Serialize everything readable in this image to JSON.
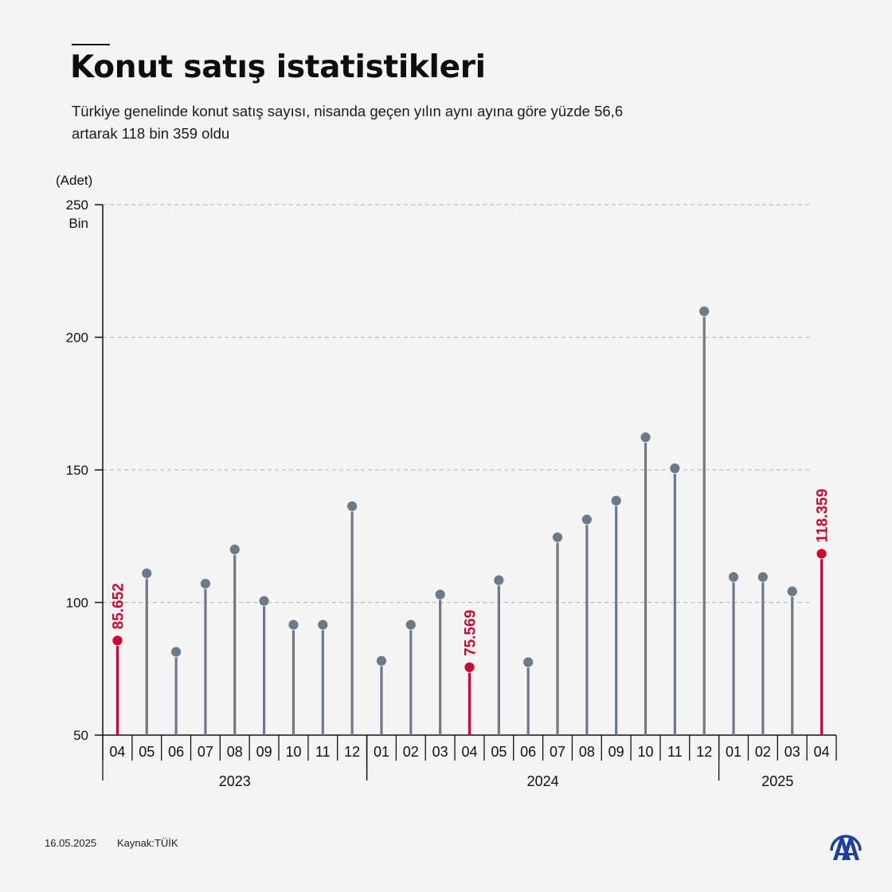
{
  "header": {
    "title": "Konut satış istatistikleri",
    "subtitle": "Türkiye genelinde konut satış sayısı, nisanda geçen yılın aynı ayına göre yüzde 56,6 artarak 118 bin 359 oldu"
  },
  "footer": {
    "date": "16.05.2025",
    "source": "Kaynak:TÜİK",
    "logo_icon": "aa-logo-icon"
  },
  "colors": {
    "background": "#f4f4f4",
    "stem": "#6b7a8b",
    "highlight": "#cc0a2f",
    "axis": "#111111",
    "grid": "#b5b5b5"
  },
  "chart_data": {
    "type": "lollipop",
    "title": "Konut satış istatistikleri",
    "ylabel": "(Adet)",
    "yunit_label": "Bin",
    "ylim": [
      50,
      250
    ],
    "yticks": [
      50,
      100,
      150,
      200,
      250
    ],
    "grid": true,
    "x": [
      {
        "month": "04",
        "year": "2023",
        "value": 85.652,
        "highlight": true,
        "label": "85.652"
      },
      {
        "month": "05",
        "year": "2023",
        "value": 111.0
      },
      {
        "month": "06",
        "year": "2023",
        "value": 81.4
      },
      {
        "month": "07",
        "year": "2023",
        "value": 107.1
      },
      {
        "month": "08",
        "year": "2023",
        "value": 120.0
      },
      {
        "month": "09",
        "year": "2023",
        "value": 100.6
      },
      {
        "month": "10",
        "year": "2023",
        "value": 91.6
      },
      {
        "month": "11",
        "year": "2023",
        "value": 91.6
      },
      {
        "month": "12",
        "year": "2023",
        "value": 136.3
      },
      {
        "month": "01",
        "year": "2024",
        "value": 78.0
      },
      {
        "month": "02",
        "year": "2024",
        "value": 91.6
      },
      {
        "month": "03",
        "year": "2024",
        "value": 103.0
      },
      {
        "month": "04",
        "year": "2024",
        "value": 75.569,
        "highlight": true,
        "label": "75.569"
      },
      {
        "month": "05",
        "year": "2024",
        "value": 108.4
      },
      {
        "month": "06",
        "year": "2024",
        "value": 77.5
      },
      {
        "month": "07",
        "year": "2024",
        "value": 124.6
      },
      {
        "month": "08",
        "year": "2024",
        "value": 131.3
      },
      {
        "month": "09",
        "year": "2024",
        "value": 138.4
      },
      {
        "month": "10",
        "year": "2024",
        "value": 162.3
      },
      {
        "month": "11",
        "year": "2024",
        "value": 150.6
      },
      {
        "month": "12",
        "year": "2024",
        "value": 209.8
      },
      {
        "month": "01",
        "year": "2025",
        "value": 109.6
      },
      {
        "month": "02",
        "year": "2025",
        "value": 109.6
      },
      {
        "month": "03",
        "year": "2025",
        "value": 104.2
      },
      {
        "month": "04",
        "year": "2025",
        "value": 118.359,
        "highlight": true,
        "label": "118.359"
      }
    ],
    "years": [
      "2023",
      "2024",
      "2025"
    ]
  }
}
